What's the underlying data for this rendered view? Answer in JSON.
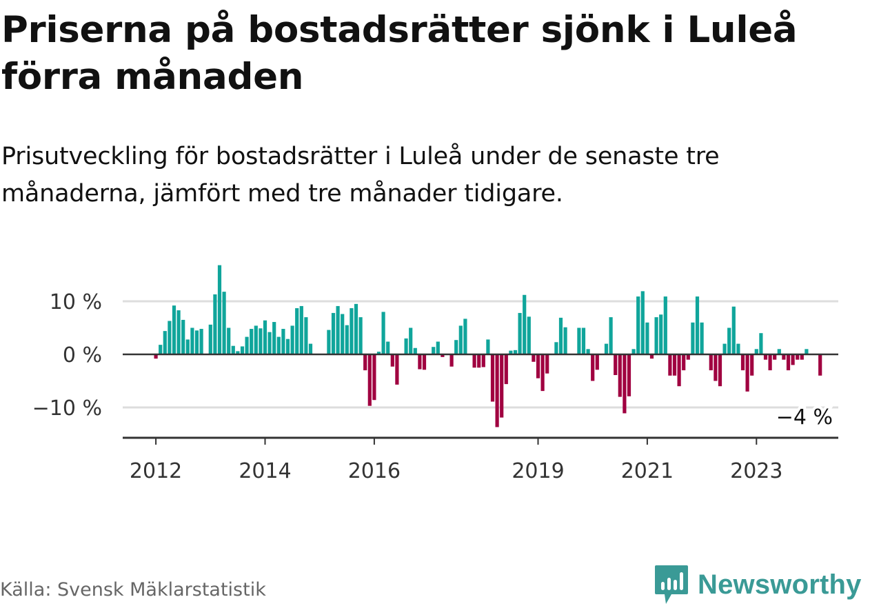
{
  "title": "Priserna på bostadsrätter sjönk i Luleå förra månaden",
  "subtitle": "Prisutveckling för bostadsrätter i Luleå under de senaste tre månaderna, jämfört med tre månader tidigare.",
  "source": "Källa: Svensk Mäklarstatistik",
  "brand": {
    "name": "Newsworthy",
    "color": "#3a9a96"
  },
  "colors": {
    "positive": "#10a59b",
    "negative": "#a00040",
    "grid": "#dddddd",
    "axis": "#333333"
  },
  "chart_data": {
    "type": "bar",
    "title": "",
    "xlabel": "",
    "ylabel": "",
    "ylim": [
      -16,
      18
    ],
    "y_ticks": [
      {
        "value": 10,
        "label": "10 %"
      },
      {
        "value": 0,
        "label": "0 %"
      },
      {
        "value": -10,
        "label": "−10 %"
      }
    ],
    "x_ticks": [
      {
        "value": 2012,
        "label": "2012"
      },
      {
        "value": 2014,
        "label": "2014"
      },
      {
        "value": 2016,
        "label": "2016"
      },
      {
        "value": 2019,
        "label": "2019"
      },
      {
        "value": 2021,
        "label": "2021"
      },
      {
        "value": 2023,
        "label": "2023"
      }
    ],
    "start_year": 2012,
    "months_per_year": 12,
    "values": [
      -0.8,
      1.8,
      4.4,
      6.3,
      9.2,
      8.3,
      6.5,
      2.8,
      5,
      4.5,
      4.8,
      null,
      5.6,
      11.3,
      16.8,
      11.8,
      5,
      1.6,
      0.6,
      1.5,
      3.3,
      4.8,
      5.4,
      4.9,
      6.4,
      4.2,
      6.1,
      3.3,
      4.8,
      2.9,
      5.4,
      8.7,
      9.1,
      7,
      2,
      null,
      null,
      null,
      4.6,
      7.8,
      9.1,
      7.6,
      5.5,
      8.7,
      9.5,
      7,
      -3,
      -9.7,
      -8.6,
      0.5,
      8,
      2.4,
      -2.3,
      -5.7,
      null,
      3,
      5,
      1.2,
      -2.8,
      -2.9,
      null,
      1.4,
      2.4,
      -0.5,
      null,
      -2.3,
      2.7,
      5.4,
      6.7,
      null,
      -2.5,
      -2.5,
      -2.4,
      2.8,
      -8.9,
      -13.7,
      -11.9,
      -5.6,
      0.7,
      0.8,
      7.8,
      11.2,
      7.1,
      -1.4,
      -4.5,
      -6.9,
      -3.6,
      null,
      2.3,
      6.9,
      5.1,
      null,
      null,
      5,
      5,
      1,
      -5,
      -2.9,
      null,
      2,
      7,
      -3.9,
      -8,
      -11.1,
      -7.9,
      1,
      10.9,
      11.9,
      6,
      -0.8,
      7,
      7.5,
      10.9,
      -4,
      -4,
      -6,
      -3,
      -1,
      6,
      10.9,
      6,
      null,
      -3,
      -5,
      -6,
      2,
      5,
      9,
      2,
      -3,
      -7,
      -4,
      1,
      4,
      -1,
      -3,
      -1,
      1,
      -1,
      -3,
      -2,
      -1,
      -1,
      1,
      null,
      null,
      -4
    ],
    "last_label": "−4 %"
  }
}
